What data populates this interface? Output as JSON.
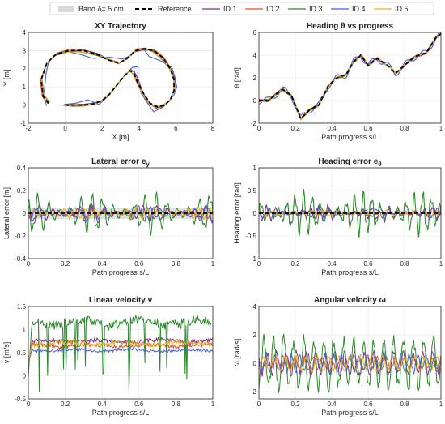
{
  "legend": {
    "items": [
      {
        "label": "Band δ= 5 cm",
        "color": "#d9d9d9",
        "style": "band"
      },
      {
        "label": "Reference",
        "color": "#000000",
        "style": "dashed"
      },
      {
        "label": "ID 1",
        "color": "#7e2f8e",
        "style": "solid"
      },
      {
        "label": "ID 2",
        "color": "#d95319",
        "style": "solid"
      },
      {
        "label": "ID 3",
        "color": "#2a8a2a",
        "style": "solid"
      },
      {
        "label": "ID 4",
        "color": "#4a5fd6",
        "style": "solid"
      },
      {
        "label": "ID 5",
        "color": "#edb120",
        "style": "solid"
      }
    ]
  },
  "chart_data": [
    {
      "id": "xy",
      "type": "line",
      "title": "XY Trajectory",
      "xlabel": "X [m]",
      "ylabel": "Y [m]",
      "xlim": [
        -2,
        8
      ],
      "ylim": [
        -1,
        4
      ],
      "xticks": [
        -2,
        0,
        2,
        4,
        6,
        8
      ],
      "yticks": [
        -1,
        0,
        1,
        2,
        3,
        4
      ],
      "grid": true,
      "reference": {
        "x": [
          -0.9,
          -1.2,
          -1.3,
          -1.0,
          -0.5,
          0.2,
          1.0,
          1.7,
          2.3,
          2.9,
          3.4,
          3.8,
          4.3,
          4.8,
          5.3,
          5.7,
          5.9,
          5.9,
          5.7,
          5.4,
          5.0,
          4.6,
          4.2,
          3.9,
          3.7,
          3.5,
          3.2,
          2.8,
          2.4,
          2.0,
          1.5,
          1.0,
          0.5,
          0.0,
          -0.1
        ],
        "y": [
          0.1,
          0.5,
          1.4,
          2.3,
          2.8,
          3.0,
          3.0,
          2.8,
          2.5,
          2.3,
          2.6,
          3.0,
          3.1,
          3.0,
          2.6,
          2.0,
          1.4,
          0.8,
          0.3,
          0.0,
          -0.1,
          0.1,
          0.7,
          1.3,
          1.8,
          1.9,
          1.6,
          1.1,
          0.6,
          0.25,
          0.05,
          0.0,
          0.0,
          0.0,
          0.0
        ]
      },
      "deviation_amplitude": [
        0.06,
        0.06,
        0.06,
        0.22,
        0.06
      ]
    },
    {
      "id": "heading",
      "type": "line",
      "title": "Heading θ vs progress",
      "xlabel": "Path progress s/L",
      "ylabel": "θ [rad]",
      "xlim": [
        0,
        1
      ],
      "ylim": [
        -2,
        6
      ],
      "xticks": [
        0,
        0.2,
        0.4,
        0.6,
        0.8,
        1
      ],
      "yticks": [
        -2,
        0,
        2,
        4,
        6
      ],
      "grid": true,
      "reference": {
        "x": [
          0,
          0.05,
          0.09,
          0.13,
          0.18,
          0.23,
          0.28,
          0.33,
          0.38,
          0.43,
          0.48,
          0.52,
          0.56,
          0.6,
          0.65,
          0.7,
          0.75,
          0.8,
          0.86,
          0.92,
          0.97,
          1.0
        ],
        "y": [
          0,
          0,
          0.5,
          1.0,
          0.4,
          -1.6,
          -0.8,
          -0.4,
          1.3,
          2.0,
          2.3,
          3.4,
          4.0,
          3.1,
          3.7,
          3.2,
          2.4,
          3.1,
          3.9,
          4.2,
          5.5,
          5.9
        ]
      },
      "deviation_amplitude": [
        0.1,
        0.1,
        0.1,
        0.3,
        0.1
      ]
    },
    {
      "id": "lateral",
      "type": "line",
      "title": "Lateral error e",
      "title_sub": "y",
      "xlabel": "Path progress s/L",
      "ylabel": "Lateral error [m]",
      "xlim": [
        0,
        1
      ],
      "ylim": [
        -0.4,
        0.4
      ],
      "xticks": [
        0,
        0.2,
        0.4,
        0.6,
        0.8,
        1
      ],
      "yticks": [
        -0.4,
        -0.2,
        0,
        0.2,
        0.4
      ],
      "grid": true,
      "band": 0.05,
      "reference": {
        "x": [
          0,
          1
        ],
        "y": [
          0,
          0
        ]
      },
      "amplitude": [
        0.09,
        0.05,
        0.2,
        0.08,
        0.06
      ]
    },
    {
      "id": "heading_err",
      "type": "line",
      "title": "Heading error e",
      "title_sub": "θ",
      "xlabel": "Path progress s/L",
      "ylabel": "Heading error [rad]",
      "xlim": [
        0,
        1
      ],
      "ylim": [
        -1,
        1
      ],
      "xticks": [
        0,
        0.2,
        0.4,
        0.6,
        0.8,
        1
      ],
      "yticks": [
        -1,
        -0.5,
        0,
        0.5,
        1
      ],
      "grid": true,
      "reference": {
        "x": [
          0,
          1
        ],
        "y": [
          0,
          0
        ]
      },
      "amplitude": [
        0.2,
        0.06,
        0.55,
        0.12,
        0.08
      ]
    },
    {
      "id": "linvel",
      "type": "line",
      "title": "Linear velocity v",
      "xlabel": "Path progress s/L",
      "ylabel": "v [m/s]",
      "xlim": [
        0,
        1
      ],
      "ylim": [
        -0.5,
        1.5
      ],
      "xticks": [
        0,
        0.2,
        0.4,
        0.6,
        0.8,
        1
      ],
      "yticks": [
        -0.5,
        0,
        0.5,
        1,
        1.5
      ],
      "grid": true,
      "series": [
        {
          "name": "ID 1",
          "mean": 0.75,
          "noise": 0.05
        },
        {
          "name": "ID 2",
          "mean": 0.65,
          "noise": 0.04
        },
        {
          "name": "ID 3",
          "mean": 1.15,
          "noise": 0.1
        },
        {
          "name": "ID 4",
          "mean": 0.55,
          "noise": 0.03
        },
        {
          "name": "ID 5",
          "mean": 0.7,
          "noise": 0.05
        }
      ]
    },
    {
      "id": "angvel",
      "type": "line",
      "title": "Angular velocity ω",
      "xlabel": "Path progress s/L",
      "ylabel": "ω [rad/s]",
      "xlim": [
        0,
        1
      ],
      "ylim": [
        -2.5,
        4
      ],
      "xticks": [
        0,
        0.2,
        0.4,
        0.6,
        0.8,
        1
      ],
      "yticks": [
        -2,
        0,
        2,
        4
      ],
      "grid": true,
      "amplitude": [
        0.9,
        0.5,
        2.0,
        0.7,
        0.6
      ]
    }
  ]
}
